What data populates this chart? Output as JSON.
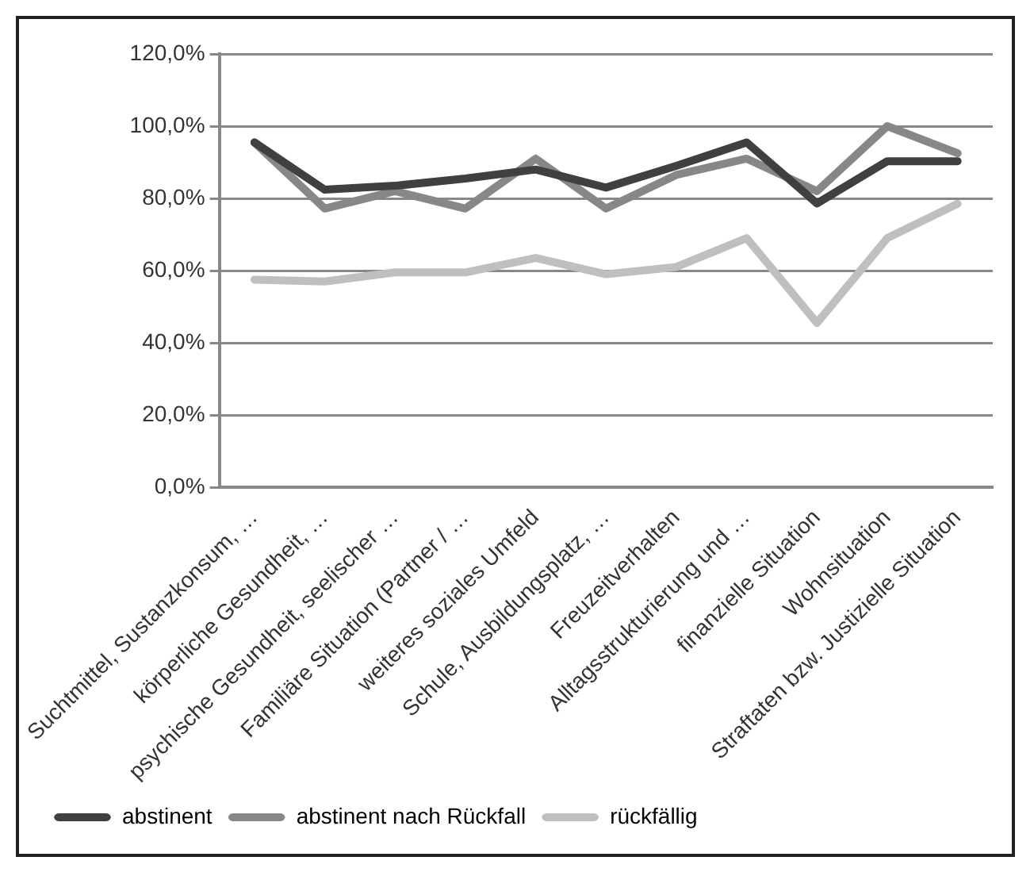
{
  "chart_data": {
    "type": "line",
    "categories": [
      "Suchtmittel, Sustanzkonsum, …",
      "körperliche Gesundheit, …",
      "psychische Gesundheit, seelischer …",
      "Familiäre Situation (Partner / …",
      "weiteres soziales Umfeld",
      "Schule, Ausbildungsplatz, …",
      "Freuzeitverhalten",
      "Alltagsstrukturierung und …",
      "finanzielle Situation",
      "Wohnsituation",
      "Straftaten bzw. Justizielle Situation"
    ],
    "series": [
      {
        "name": "abstinent",
        "color": "#404040",
        "values": [
          95.5,
          82.4,
          83.5,
          85.5,
          88,
          83,
          89,
          95.5,
          78.6,
          90.3,
          90.3
        ]
      },
      {
        "name": "abstinent nach Rückfall",
        "color": "#878787",
        "values": [
          95.5,
          77.2,
          82,
          77.2,
          91,
          77.2,
          86.5,
          91,
          82,
          100,
          92.5
        ]
      },
      {
        "name": "rückfällig",
        "color": "#bfbfbf",
        "values": [
          57.5,
          57,
          59.5,
          59.5,
          63.5,
          59,
          61,
          69,
          45.5,
          69,
          78.5
        ]
      }
    ],
    "ylim": [
      0,
      120
    ],
    "yticks": [
      {
        "value": 0,
        "label": "0,0%"
      },
      {
        "value": 20,
        "label": "20,0%"
      },
      {
        "value": 40,
        "label": "40,0%"
      },
      {
        "value": 60,
        "label": "60,0%"
      },
      {
        "value": 80,
        "label": "80,0%"
      },
      {
        "value": 100,
        "label": "100,0%"
      },
      {
        "value": 120,
        "label": "120,0%"
      }
    ],
    "grid": "y",
    "legend": "bottom",
    "marker": "none",
    "line_style": "solid"
  }
}
